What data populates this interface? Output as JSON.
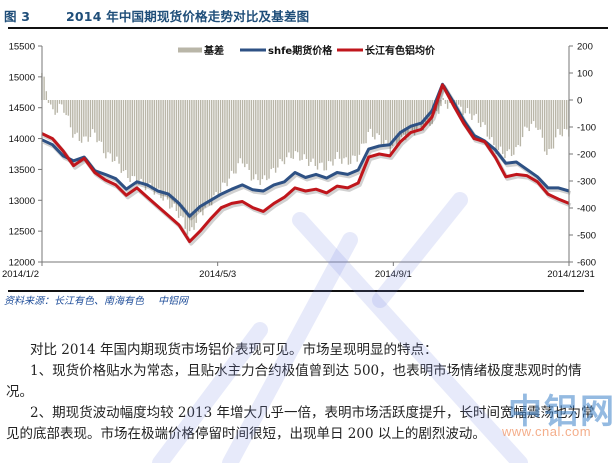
{
  "figure": {
    "label": "图 3",
    "title": "2014 年中国期现货价格走势对比及基差图",
    "source": "资料来源：长江有色、南海有色",
    "source_site": "中铝网"
  },
  "chart_data": {
    "type": "bar+line",
    "title": "2014 年中国期现货价格走势对比及基差图",
    "xlabel": "",
    "ylabel_left": "",
    "ylabel_right": "",
    "x_tick_labels": [
      "2014/1/2",
      "2014/5/3",
      "2014/9/1",
      "2014/12/31"
    ],
    "y_left": {
      "ticks": [
        12000,
        12500,
        13000,
        13500,
        14000,
        14500,
        15000,
        15500
      ],
      "ylim": [
        12000,
        15500
      ]
    },
    "y_right": {
      "ticks": [
        -600,
        -500,
        -400,
        -300,
        -200,
        -100,
        0,
        100,
        200
      ],
      "ylim": [
        -600,
        200
      ]
    },
    "legend": [
      "基差",
      "shfe期货价格",
      "长江有色铝均价"
    ],
    "legend_position": "top",
    "grid": false,
    "colors": {
      "basis": "#b9b6a8",
      "shfe": "#2e5184",
      "spot": "#c0161c"
    },
    "x": [
      0,
      0.02,
      0.04,
      0.06,
      0.08,
      0.1,
      0.12,
      0.14,
      0.16,
      0.18,
      0.2,
      0.22,
      0.24,
      0.26,
      0.28,
      0.3,
      0.32,
      0.34,
      0.36,
      0.38,
      0.4,
      0.42,
      0.44,
      0.46,
      0.48,
      0.5,
      0.52,
      0.54,
      0.56,
      0.58,
      0.6,
      0.62,
      0.64,
      0.66,
      0.68,
      0.7,
      0.72,
      0.74,
      0.76,
      0.78,
      0.8,
      0.82,
      0.84,
      0.86,
      0.88,
      0.9,
      0.92,
      0.94,
      0.96,
      0.98,
      1.0
    ],
    "series": [
      {
        "name": "shfe期货价格",
        "axis": "left",
        "type": "line",
        "values": [
          13980,
          13900,
          13720,
          13640,
          13700,
          13480,
          13420,
          13350,
          13180,
          13300,
          13250,
          13150,
          13100,
          12950,
          12740,
          12900,
          13000,
          13100,
          13180,
          13250,
          13170,
          13150,
          13250,
          13300,
          13450,
          13370,
          13420,
          13360,
          13450,
          13420,
          13490,
          13830,
          13880,
          13900,
          14100,
          14200,
          14250,
          14450,
          14880,
          14600,
          14300,
          14050,
          13960,
          13820,
          13600,
          13620,
          13500,
          13380,
          13200,
          13200,
          13150
        ]
      },
      {
        "name": "长江有色铝均价",
        "axis": "left",
        "type": "line",
        "values": [
          14080,
          14000,
          13800,
          13560,
          13680,
          13450,
          13330,
          13250,
          13080,
          13200,
          13050,
          12900,
          12750,
          12600,
          12330,
          12500,
          12700,
          12880,
          12950,
          12980,
          12880,
          12820,
          12950,
          13050,
          13200,
          13150,
          13180,
          13120,
          13230,
          13200,
          13280,
          13700,
          13750,
          13720,
          13950,
          14100,
          14150,
          14350,
          14870,
          14550,
          14250,
          14000,
          13950,
          13700,
          13380,
          13420,
          13400,
          13300,
          13100,
          13020,
          12950
        ]
      },
      {
        "name": "基差",
        "axis": "right",
        "type": "bar",
        "values": [
          100,
          -50,
          -20,
          -130,
          -150,
          -120,
          -200,
          -220,
          -280,
          -300,
          -320,
          -340,
          -380,
          -420,
          -500,
          -420,
          -380,
          -330,
          -280,
          -220,
          -290,
          -300,
          -260,
          -220,
          -200,
          -220,
          -240,
          -250,
          -210,
          -230,
          -210,
          -120,
          -140,
          -180,
          -150,
          -120,
          -100,
          -80,
          -10,
          -20,
          -40,
          -60,
          -100,
          -180,
          -200,
          -190,
          -100,
          -90,
          -210,
          -120,
          -120
        ]
      }
    ]
  },
  "body": {
    "p1": "对比 2014 年国内期现货市场铝价表现可见。市场呈现明显的特点：",
    "p2": "1、现货价格贴水为常态，且贴水主力合约极值曾到达 500，也表明市场情绪极度悲观时的情况。",
    "p3": "2、期现货波动幅度均较 2013 年增大几乎一倍，表明市场活跃度提升，长时间宽幅震荡也为常见的底部表现。市场在极端价格停留时间很短，出现单日 200 以上的剧烈波动。"
  },
  "watermark": {
    "logo": "中铝网",
    "url": "www.cnal.com"
  }
}
